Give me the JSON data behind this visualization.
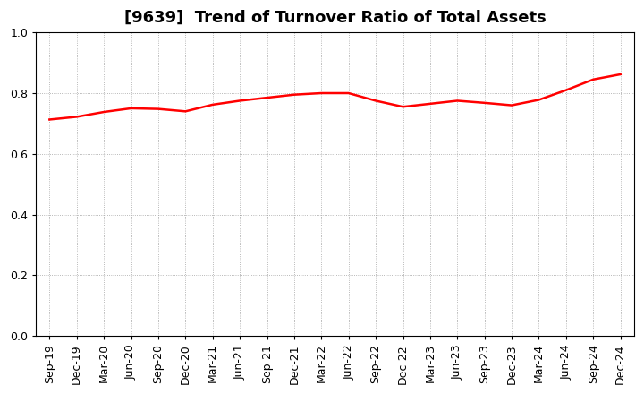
{
  "title": "[9639]  Trend of Turnover Ratio of Total Assets",
  "x_labels": [
    "Sep-19",
    "Dec-19",
    "Mar-20",
    "Jun-20",
    "Sep-20",
    "Dec-20",
    "Mar-21",
    "Jun-21",
    "Sep-21",
    "Dec-21",
    "Mar-22",
    "Jun-22",
    "Sep-22",
    "Dec-22",
    "Mar-23",
    "Jun-23",
    "Sep-23",
    "Dec-23",
    "Mar-24",
    "Jun-24",
    "Sep-24",
    "Dec-24"
  ],
  "y_values": [
    0.713,
    0.722,
    0.738,
    0.75,
    0.748,
    0.74,
    0.762,
    0.775,
    0.785,
    0.795,
    0.8,
    0.8,
    0.775,
    0.755,
    0.765,
    0.775,
    0.768,
    0.76,
    0.778,
    0.81,
    0.845,
    0.862
  ],
  "ylim": [
    0.0,
    1.0
  ],
  "yticks": [
    0.0,
    0.2,
    0.4,
    0.6,
    0.8,
    1.0
  ],
  "line_color": "#ff0000",
  "line_width": 1.8,
  "bg_color": "#ffffff",
  "grid_color": "#999999",
  "title_fontsize": 13,
  "tick_fontsize": 9,
  "spine_color": "#000000"
}
